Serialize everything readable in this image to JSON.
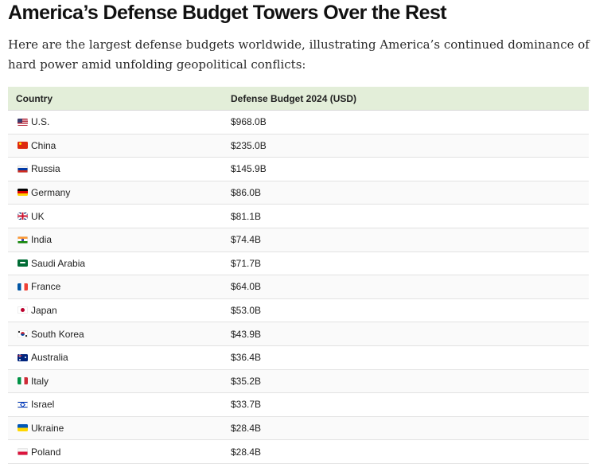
{
  "article": {
    "title": "America’s Defense Budget Towers Over the Rest",
    "intro": "Here are the largest defense budgets worldwide, illustrating America’s continued dominance of hard power amid unfolding geopolitical conflicts:"
  },
  "table": {
    "headers": [
      "Country",
      "Defense Budget 2024 (USD)"
    ],
    "rows": [
      {
        "country": "U.S.",
        "budget": "$968.0B",
        "flag": "us-flag-icon"
      },
      {
        "country": "China",
        "budget": "$235.0B",
        "flag": "china-flag-icon"
      },
      {
        "country": "Russia",
        "budget": "$145.9B",
        "flag": "russia-flag-icon"
      },
      {
        "country": "Germany",
        "budget": "$86.0B",
        "flag": "germany-flag-icon"
      },
      {
        "country": "UK",
        "budget": "$81.1B",
        "flag": "uk-flag-icon"
      },
      {
        "country": "India",
        "budget": "$74.4B",
        "flag": "india-flag-icon"
      },
      {
        "country": "Saudi Arabia",
        "budget": "$71.7B",
        "flag": "saudi-arabia-flag-icon"
      },
      {
        "country": "France",
        "budget": "$64.0B",
        "flag": "france-flag-icon"
      },
      {
        "country": "Japan",
        "budget": "$53.0B",
        "flag": "japan-flag-icon"
      },
      {
        "country": "South Korea",
        "budget": "$43.9B",
        "flag": "south-korea-flag-icon"
      },
      {
        "country": "Australia",
        "budget": "$36.4B",
        "flag": "australia-flag-icon"
      },
      {
        "country": "Italy",
        "budget": "$35.2B",
        "flag": "italy-flag-icon"
      },
      {
        "country": "Israel",
        "budget": "$33.7B",
        "flag": "israel-flag-icon"
      },
      {
        "country": "Ukraine",
        "budget": "$28.4B",
        "flag": "ukraine-flag-icon"
      },
      {
        "country": "Poland",
        "budget": "$28.4B",
        "flag": "poland-flag-icon"
      }
    ]
  },
  "colors": {
    "header_background": "#e3eed9",
    "row_divider": "#e2e2e2"
  }
}
